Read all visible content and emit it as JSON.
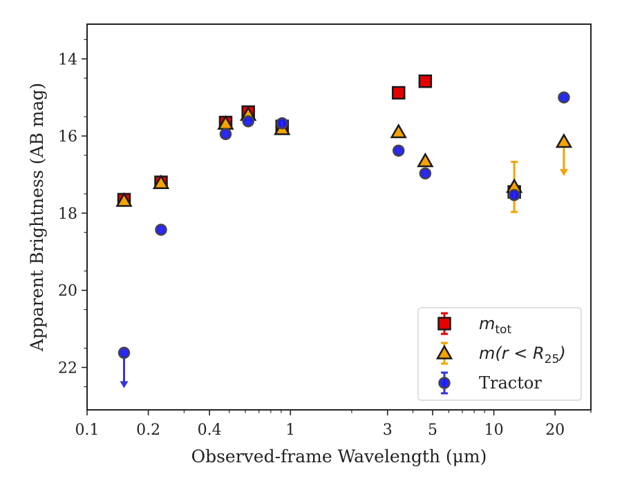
{
  "chart_data": {
    "type": "scatter",
    "xlabel": "Observed-frame Wavelength (μm)",
    "ylabel": "Apparent Brightness (AB mag)",
    "x_scale": "log",
    "xlim": [
      0.1,
      30
    ],
    "ylim": [
      23.1,
      13.1
    ],
    "y_inverted": true,
    "x_ticks": [
      0.1,
      0.2,
      0.4,
      1,
      3,
      5,
      10,
      20
    ],
    "x_tick_labels": [
      "0.1",
      "0.2",
      "0.4",
      "1",
      "3",
      "5",
      "10",
      "20"
    ],
    "y_ticks": [
      14,
      16,
      18,
      20,
      22
    ],
    "y_tick_labels": [
      "14",
      "16",
      "18",
      "20",
      "22"
    ],
    "grid": false,
    "legend_position": "bottom-right",
    "legend": [
      {
        "label_base": "m",
        "label_sub": "tot",
        "label_text": ""
      },
      {
        "label_base": "m",
        "label_sub": "25",
        "label_text": "(r < R"
      },
      {
        "label_base": "",
        "label_sub": "",
        "label_text": "Tractor"
      }
    ],
    "series": [
      {
        "marker": "square",
        "color": "#e60000",
        "err_color": "#e60000",
        "points": [
          {
            "x": 0.152,
            "y": 17.65
          },
          {
            "x": 0.231,
            "y": 17.2
          },
          {
            "x": 0.48,
            "y": 15.65
          },
          {
            "x": 0.62,
            "y": 15.38
          },
          {
            "x": 0.91,
            "y": 15.75
          },
          {
            "x": 3.4,
            "y": 14.88
          },
          {
            "x": 4.6,
            "y": 14.58
          },
          {
            "x": 12.6,
            "y": 17.45,
            "yerr": 0.1
          }
        ]
      },
      {
        "marker": "triangle",
        "color": "#f5a300",
        "err_color": "#f5a300",
        "points": [
          {
            "x": 0.152,
            "y": 17.68
          },
          {
            "x": 0.231,
            "y": 17.22
          },
          {
            "x": 0.48,
            "y": 15.68
          },
          {
            "x": 0.62,
            "y": 15.45
          },
          {
            "x": 0.91,
            "y": 15.82
          },
          {
            "x": 3.4,
            "y": 15.9
          },
          {
            "x": 4.6,
            "y": 16.65
          },
          {
            "x": 12.6,
            "y": 17.32,
            "yerr": 0.65
          },
          {
            "x": 22.1,
            "y": 16.15,
            "upper_limit": true,
            "arrow_to": 17.0
          }
        ]
      },
      {
        "marker": "circle",
        "color": "#1a1aff",
        "err_color": "#3333dd",
        "points": [
          {
            "x": 0.152,
            "y": 21.62,
            "upper_limit": true,
            "arrow_to": 22.5
          },
          {
            "x": 0.231,
            "y": 18.43
          },
          {
            "x": 0.48,
            "y": 15.95
          },
          {
            "x": 0.62,
            "y": 15.62
          },
          {
            "x": 0.91,
            "y": 15.67
          },
          {
            "x": 3.4,
            "y": 16.38
          },
          {
            "x": 4.6,
            "y": 16.97
          },
          {
            "x": 12.6,
            "y": 17.53
          },
          {
            "x": 22.1,
            "y": 15.0
          }
        ]
      }
    ]
  }
}
